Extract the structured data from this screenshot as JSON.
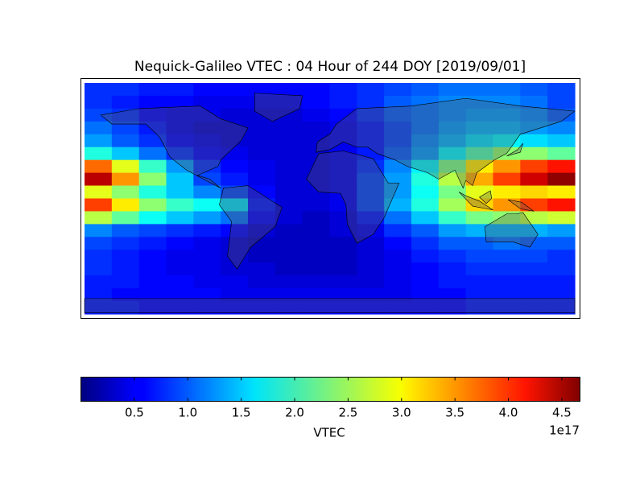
{
  "chart_data": {
    "type": "heatmap",
    "title": "Nequick-Galileo VTEC : 04 Hour of 244 DOY [2019/09/01]",
    "cmap": "jet",
    "z": [
      [
        0.8,
        0.8,
        0.7,
        0.7,
        0.6,
        0.6,
        0.6,
        0.6,
        0.6,
        0.7,
        0.8,
        0.9,
        1.0,
        1.1,
        1.1,
        1.1,
        1.0,
        0.9
      ],
      [
        0.8,
        0.7,
        0.6,
        0.6,
        0.5,
        0.5,
        0.5,
        0.5,
        0.6,
        0.7,
        0.8,
        1.0,
        1.1,
        1.2,
        1.2,
        1.2,
        1.1,
        0.9
      ],
      [
        0.9,
        0.8,
        0.6,
        0.5,
        0.5,
        0.4,
        0.4,
        0.4,
        0.5,
        0.6,
        0.8,
        1.0,
        1.1,
        1.2,
        1.3,
        1.3,
        1.2,
        1.0
      ],
      [
        1.1,
        0.9,
        0.7,
        0.5,
        0.4,
        0.4,
        0.4,
        0.4,
        0.4,
        0.5,
        0.7,
        0.9,
        1.1,
        1.3,
        1.4,
        1.4,
        1.3,
        1.2
      ],
      [
        1.3,
        1.0,
        0.8,
        0.6,
        0.5,
        0.4,
        0.4,
        0.4,
        0.4,
        0.5,
        0.7,
        0.9,
        1.2,
        1.4,
        1.6,
        1.7,
        1.6,
        1.5
      ],
      [
        1.9,
        1.5,
        1.1,
        0.8,
        0.6,
        0.5,
        0.4,
        0.4,
        0.4,
        0.5,
        0.7,
        1.0,
        1.3,
        1.7,
        2.1,
        2.4,
        2.4,
        2.2
      ],
      [
        3.6,
        2.8,
        2.0,
        1.3,
        0.8,
        0.6,
        0.5,
        0.4,
        0.4,
        0.5,
        0.8,
        1.2,
        1.7,
        2.3,
        3.0,
        3.4,
        3.8,
        4.0
      ],
      [
        4.4,
        3.4,
        2.4,
        1.5,
        0.9,
        0.7,
        0.5,
        0.4,
        0.4,
        0.5,
        0.9,
        1.3,
        1.9,
        2.6,
        3.3,
        3.8,
        4.3,
        4.6
      ],
      [
        2.8,
        2.4,
        1.9,
        1.5,
        1.2,
        0.9,
        0.6,
        0.4,
        0.4,
        0.5,
        0.9,
        1.3,
        1.8,
        2.3,
        2.8,
        3.0,
        3.1,
        3.0
      ],
      [
        3.8,
        3.0,
        2.4,
        2.0,
        1.8,
        1.6,
        0.7,
        0.4,
        0.4,
        0.5,
        0.9,
        1.4,
        1.9,
        2.5,
        3.1,
        3.4,
        3.8,
        4.0
      ],
      [
        2.6,
        2.2,
        1.8,
        1.5,
        1.3,
        1.1,
        0.6,
        0.4,
        0.3,
        0.4,
        0.7,
        1.1,
        1.5,
        2.0,
        2.3,
        2.4,
        2.6,
        2.7
      ],
      [
        1.2,
        1.0,
        0.9,
        0.8,
        0.7,
        0.6,
        0.4,
        0.3,
        0.3,
        0.4,
        0.5,
        0.8,
        1.0,
        1.3,
        1.4,
        1.4,
        1.4,
        1.3
      ],
      [
        0.9,
        0.8,
        0.7,
        0.6,
        0.5,
        0.4,
        0.3,
        0.3,
        0.3,
        0.3,
        0.4,
        0.6,
        0.8,
        1.0,
        1.0,
        1.1,
        1.0,
        1.0
      ],
      [
        0.8,
        0.7,
        0.6,
        0.5,
        0.5,
        0.4,
        0.3,
        0.3,
        0.3,
        0.3,
        0.4,
        0.5,
        0.7,
        0.8,
        0.9,
        0.9,
        0.9,
        0.8
      ],
      [
        0.8,
        0.7,
        0.6,
        0.5,
        0.5,
        0.4,
        0.4,
        0.3,
        0.3,
        0.3,
        0.4,
        0.5,
        0.6,
        0.7,
        0.8,
        0.8,
        0.8,
        0.8
      ],
      [
        0.7,
        0.7,
        0.6,
        0.6,
        0.5,
        0.5,
        0.4,
        0.4,
        0.4,
        0.4,
        0.4,
        0.5,
        0.6,
        0.7,
        0.7,
        0.7,
        0.7,
        0.7
      ],
      [
        0.7,
        0.6,
        0.6,
        0.6,
        0.6,
        0.5,
        0.5,
        0.5,
        0.5,
        0.5,
        0.5,
        0.5,
        0.6,
        0.6,
        0.7,
        0.7,
        0.7,
        0.7
      ],
      [
        0.7,
        0.7,
        0.6,
        0.6,
        0.6,
        0.6,
        0.6,
        0.6,
        0.6,
        0.6,
        0.6,
        0.6,
        0.6,
        0.6,
        0.7,
        0.7,
        0.7,
        0.7
      ]
    ],
    "colorbar": {
      "label": "VTEC",
      "offset_label": "1e17",
      "lim": [
        0.0,
        4.67
      ],
      "ticks": [
        0.5,
        {
          "value": 1,
          "label": "1.0"
        },
        1.5,
        {
          "value": 2,
          "label": "2.0"
        },
        2.5,
        {
          "value": 3,
          "label": "3.0"
        },
        3.5,
        {
          "value": 4,
          "label": "4.0"
        },
        4.5
      ]
    }
  }
}
